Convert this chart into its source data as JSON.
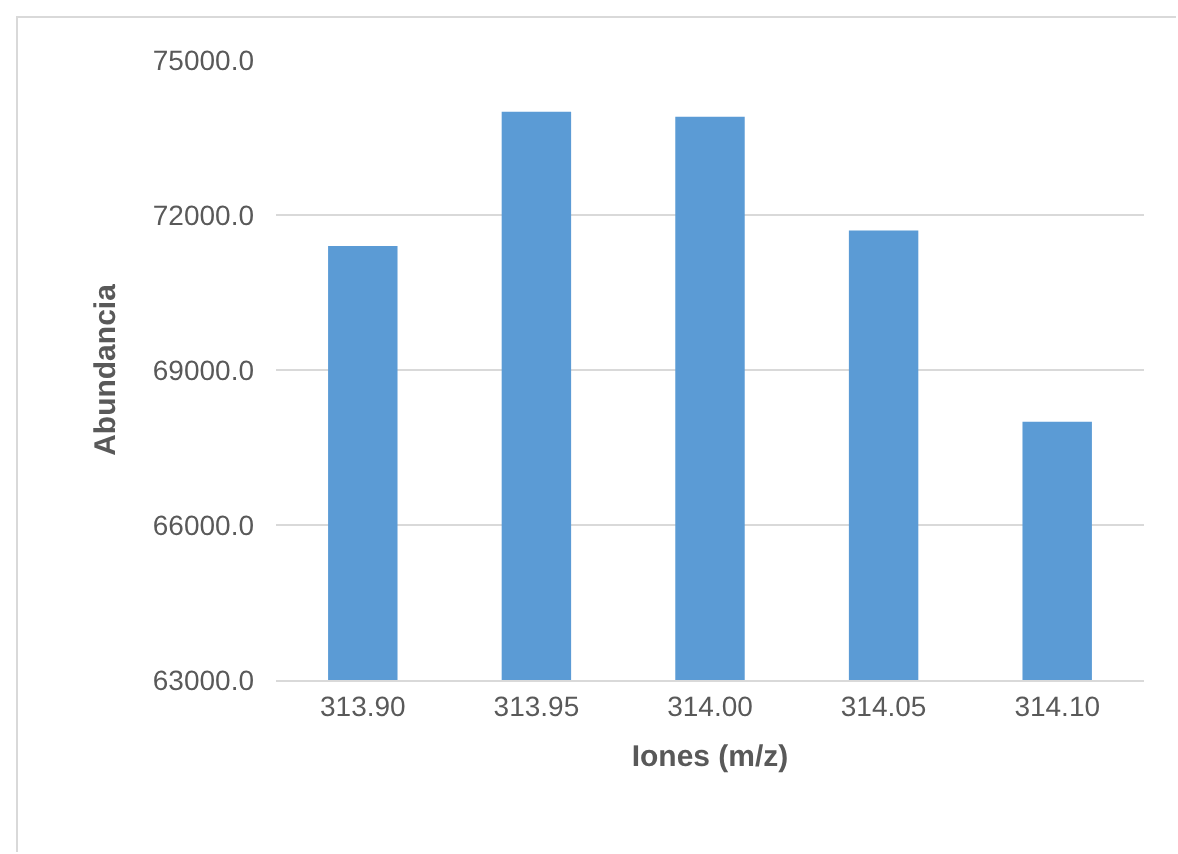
{
  "chart_data": {
    "type": "bar",
    "xlabel": "Iones (m/z)",
    "ylabel": "Abundancia",
    "categories": [
      "313.90",
      "313.95",
      "314.00",
      "314.05",
      "314.10"
    ],
    "values": [
      71400,
      74000,
      73900,
      71700,
      68000
    ],
    "color": "#5b9bd5",
    "ylim": [
      63000,
      75000
    ],
    "yticks": [
      {
        "value": 63000,
        "label": "63000.0"
      },
      {
        "value": 66000,
        "label": "66000.0"
      },
      {
        "value": 69000,
        "label": "69000.0"
      },
      {
        "value": 72000,
        "label": "72000.0"
      },
      {
        "value": 75000,
        "label": "75000.0"
      }
    ],
    "grid": "y",
    "legend": false
  }
}
